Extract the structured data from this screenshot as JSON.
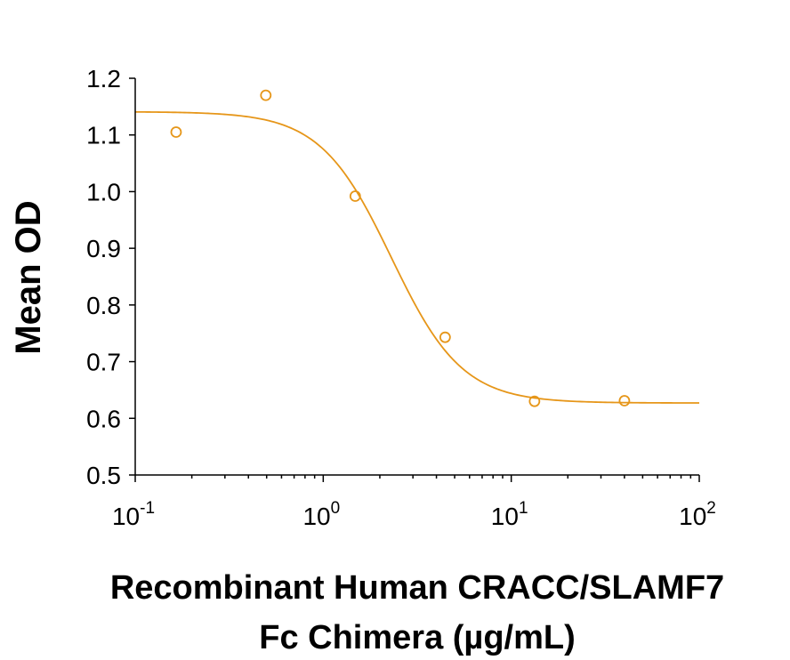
{
  "chart_data": {
    "type": "scatter",
    "title": "",
    "xlabel_lines": [
      "Recombinant Human CRACC/SLAMF7",
      "Fc Chimera (µg/mL)"
    ],
    "ylabel": "Mean OD",
    "x_scale": "log",
    "xlim": [
      0.1,
      100
    ],
    "ylim": [
      0.5,
      1.2
    ],
    "x_ticks": [
      0.1,
      1,
      10,
      100
    ],
    "x_tick_labels": [
      {
        "base": "10",
        "exp": "-1"
      },
      {
        "base": "10",
        "exp": "0"
      },
      {
        "base": "10",
        "exp": "1"
      },
      {
        "base": "10",
        "exp": "2"
      }
    ],
    "y_ticks": [
      0.5,
      0.6,
      0.7,
      0.8,
      0.9,
      1.0,
      1.1,
      1.2
    ],
    "y_tick_labels": [
      "0.5",
      "0.6",
      "0.7",
      "0.8",
      "0.9",
      "1.0",
      "1.1",
      "1.2"
    ],
    "grid": false,
    "color": "#E69619",
    "series": [
      {
        "marker": "open-circle",
        "x": [
          0.165,
          0.495,
          1.48,
          4.45,
          13.3,
          40.0
        ],
        "y": [
          1.105,
          1.17,
          0.992,
          0.743,
          0.63,
          0.631
        ]
      }
    ],
    "fit": {
      "model": "4PL",
      "top": 1.141,
      "bottom": 0.627,
      "ec50": 2.3,
      "hill": 2.3,
      "x_range": [
        0.1,
        100
      ]
    }
  }
}
